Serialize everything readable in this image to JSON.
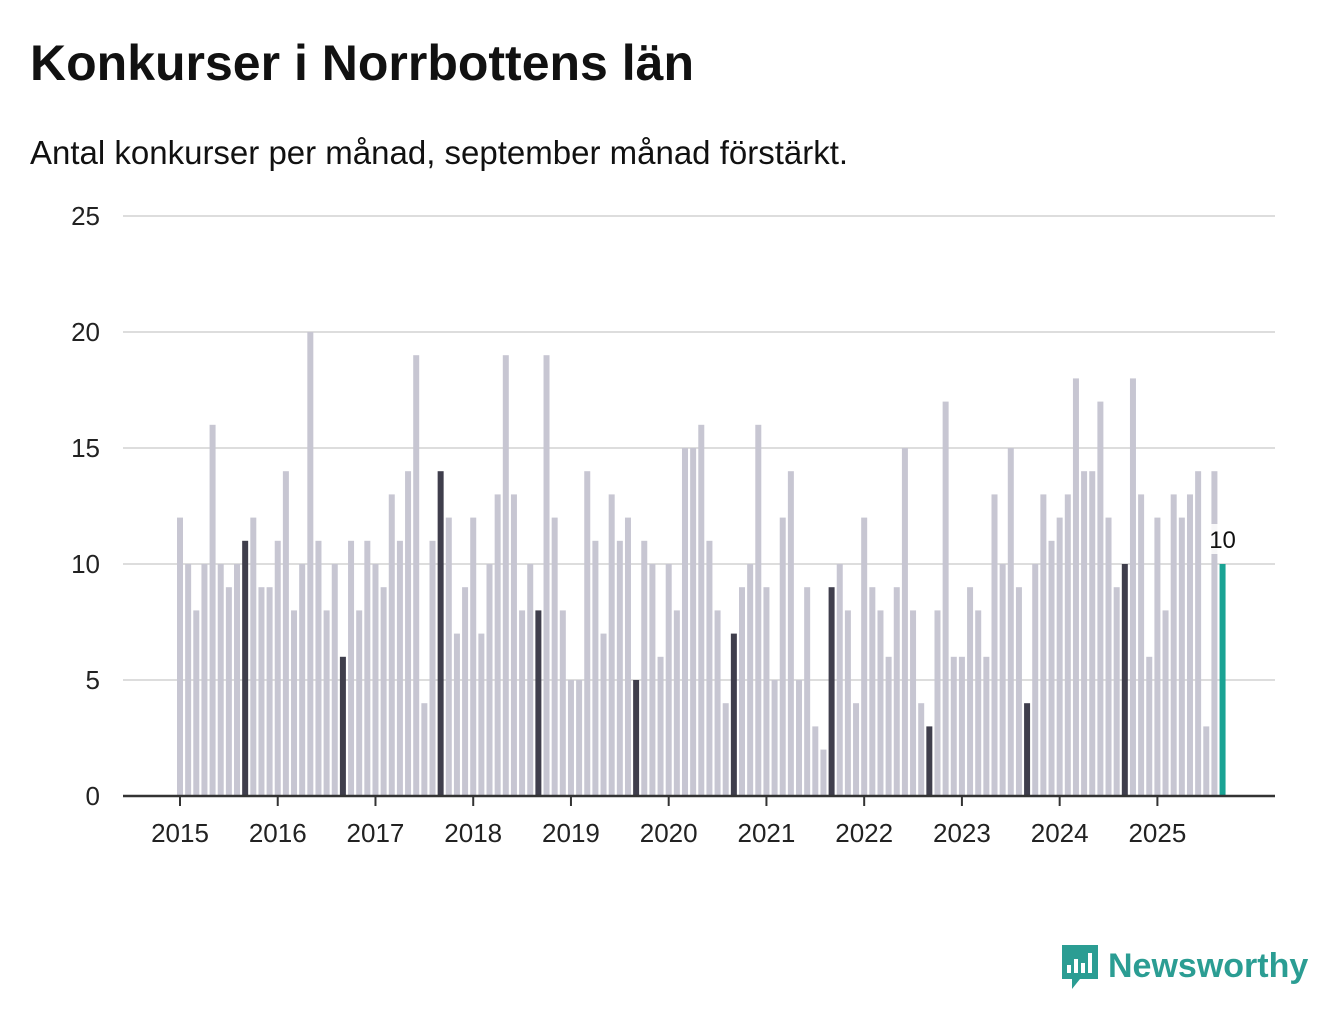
{
  "title": "Konkurser i Norrbottens län",
  "subtitle": "Antal konkurser per månad, september månad förstärkt.",
  "brand": {
    "name": "Newsworthy",
    "color": "#2b9d93",
    "icon": "newsworthy-logo-icon"
  },
  "colors": {
    "bar": "#c7c6d2",
    "highlight": "#3f3e4c",
    "latest": "#1aa394",
    "grid": "#dddddd",
    "axis": "#333333"
  },
  "chart_data": {
    "type": "bar",
    "title": "Konkurser i Norrbottens län",
    "subtitle": "Antal konkurser per månad, september månad förstärkt.",
    "xlabel": "",
    "ylabel": "",
    "ylim": [
      0,
      25
    ],
    "yticks": [
      0,
      5,
      10,
      15,
      20,
      25
    ],
    "xticks": [
      "2015",
      "2016",
      "2017",
      "2018",
      "2019",
      "2020",
      "2021",
      "2022",
      "2023",
      "2024",
      "2025"
    ],
    "grid": true,
    "start": "2015-01",
    "highlight_month": "september",
    "latest_label": "10",
    "values": [
      12,
      10,
      8,
      10,
      16,
      10,
      9,
      10,
      11,
      12,
      9,
      9,
      11,
      14,
      8,
      10,
      20,
      11,
      8,
      10,
      6,
      11,
      8,
      11,
      10,
      9,
      13,
      11,
      14,
      19,
      4,
      11,
      14,
      12,
      7,
      9,
      12,
      7,
      10,
      13,
      19,
      13,
      8,
      10,
      8,
      19,
      12,
      8,
      5,
      5,
      14,
      11,
      7,
      13,
      11,
      12,
      5,
      11,
      10,
      6,
      10,
      8,
      15,
      15,
      16,
      11,
      8,
      4,
      7,
      9,
      10,
      16,
      9,
      5,
      12,
      14,
      5,
      9,
      3,
      2,
      9,
      10,
      8,
      4,
      12,
      9,
      8,
      6,
      9,
      15,
      8,
      4,
      3,
      8,
      17,
      6,
      6,
      9,
      8,
      6,
      13,
      10,
      15,
      9,
      4,
      10,
      13,
      11,
      12,
      13,
      18,
      14,
      14,
      17,
      12,
      9,
      10,
      18,
      13,
      6,
      12,
      8,
      13,
      12,
      13,
      14,
      3,
      14,
      10
    ]
  }
}
